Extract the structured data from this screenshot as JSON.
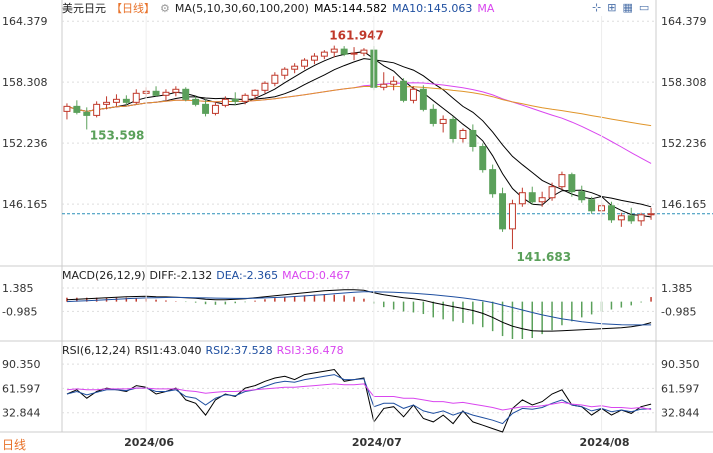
{
  "header": {
    "symbol": "美元日元",
    "period": "【日线】",
    "ma_params": "MA(5,10,30,60,100,200)",
    "ma5": "MA5:144.582",
    "ma10": "MA10:145.063",
    "ma_more": "MA",
    "toolbar_icons": [
      "crosshair-icon",
      "zoom-icon",
      "grid-icon",
      "window-icon"
    ]
  },
  "macd_legend": {
    "params": "MACD(26,12,9)",
    "diff": "DIFF:-2.132",
    "dea": "DEA:-2.365",
    "macd": "MACD:0.467"
  },
  "rsi_legend": {
    "params": "RSI(6,12,24)",
    "rsi1": "RSI1:43.040",
    "rsi2": "RSI2:37.528",
    "rsi3": "RSI3:36.478"
  },
  "footer": {
    "period_button": "日线"
  },
  "colors": {
    "up": "#c0392b",
    "down": "#5aa05a",
    "ma5": "#000000",
    "ma10": "#000000",
    "ma30": "#d946ef",
    "ma60": "#e0952a",
    "ma100": "#888888",
    "ma200": "#b03a2e",
    "current": "#2a8fb8",
    "grid": "#dddddd"
  },
  "chart_data": [
    {
      "type": "candlestick",
      "title": "美元日元 日线",
      "y_ticks": [
        "164.379",
        "158.308",
        "152.236",
        "146.165"
      ],
      "ylim": [
        140.0,
        164.9
      ],
      "x_ticks": [
        "2024/06",
        "2024/07",
        "2024/08"
      ],
      "annotations": {
        "high": "161.947",
        "low": "141.683",
        "prior_low": "153.598"
      },
      "current_price": 145.2,
      "candles": [
        [
          155.4,
          156.2,
          154.6,
          155.9
        ],
        [
          155.9,
          156.5,
          155.1,
          155.3
        ],
        [
          155.3,
          155.8,
          153.6,
          155.0
        ],
        [
          155.0,
          156.4,
          154.8,
          156.1
        ],
        [
          156.1,
          156.9,
          155.6,
          156.3
        ],
        [
          156.3,
          157.1,
          155.9,
          156.6
        ],
        [
          156.6,
          157.0,
          156.0,
          156.3
        ],
        [
          156.3,
          157.6,
          156.1,
          157.2
        ],
        [
          157.2,
          157.8,
          156.8,
          157.4
        ],
        [
          157.4,
          157.9,
          156.9,
          157.0
        ],
        [
          157.0,
          157.6,
          156.5,
          157.3
        ],
        [
          157.3,
          157.9,
          156.9,
          157.6
        ],
        [
          157.6,
          157.8,
          156.4,
          156.6
        ],
        [
          156.6,
          156.9,
          155.9,
          156.1
        ],
        [
          156.1,
          156.6,
          154.9,
          155.2
        ],
        [
          155.2,
          156.3,
          155.0,
          156.0
        ],
        [
          156.0,
          156.9,
          155.8,
          156.6
        ],
        [
          156.6,
          157.3,
          156.0,
          156.4
        ],
        [
          156.4,
          157.2,
          156.1,
          157.0
        ],
        [
          157.0,
          157.6,
          156.6,
          157.5
        ],
        [
          157.5,
          158.4,
          157.2,
          158.2
        ],
        [
          158.2,
          159.3,
          157.9,
          159.0
        ],
        [
          159.0,
          159.8,
          158.6,
          159.6
        ],
        [
          159.6,
          160.2,
          159.2,
          159.9
        ],
        [
          159.9,
          160.7,
          159.6,
          160.5
        ],
        [
          160.5,
          161.2,
          160.1,
          160.9
        ],
        [
          160.9,
          161.5,
          160.6,
          161.3
        ],
        [
          161.3,
          161.95,
          160.8,
          161.6
        ],
        [
          161.6,
          161.9,
          160.9,
          161.1
        ],
        [
          161.1,
          161.8,
          160.5,
          161.2
        ],
        [
          161.2,
          161.7,
          160.9,
          161.5
        ],
        [
          161.5,
          161.9,
          157.5,
          157.8
        ],
        [
          157.8,
          159.3,
          157.5,
          158.1
        ],
        [
          158.1,
          158.9,
          157.5,
          158.4
        ],
        [
          158.4,
          158.7,
          156.3,
          156.5
        ],
        [
          156.5,
          157.9,
          156.2,
          157.6
        ],
        [
          157.6,
          158.0,
          155.4,
          155.6
        ],
        [
          155.6,
          156.1,
          153.9,
          154.2
        ],
        [
          154.2,
          155.0,
          153.3,
          154.6
        ],
        [
          154.6,
          154.9,
          152.3,
          152.7
        ],
        [
          152.7,
          153.7,
          152.3,
          153.5
        ],
        [
          153.5,
          154.1,
          151.4,
          151.9
        ],
        [
          151.9,
          152.2,
          149.3,
          149.6
        ],
        [
          149.6,
          150.1,
          146.8,
          147.2
        ],
        [
          147.2,
          147.8,
          143.4,
          143.7
        ],
        [
          143.7,
          146.6,
          141.68,
          146.2
        ],
        [
          146.2,
          147.8,
          145.9,
          147.3
        ],
        [
          147.3,
          147.9,
          146.1,
          146.4
        ],
        [
          146.4,
          147.4,
          145.9,
          146.8
        ],
        [
          146.8,
          148.3,
          146.5,
          147.9
        ],
        [
          147.9,
          149.4,
          147.6,
          149.1
        ],
        [
          149.1,
          149.3,
          146.9,
          147.4
        ],
        [
          147.4,
          148.0,
          146.3,
          146.6
        ],
        [
          146.6,
          146.9,
          145.2,
          145.5
        ],
        [
          145.5,
          146.3,
          144.9,
          146.0
        ],
        [
          146.0,
          146.4,
          144.3,
          144.6
        ],
        [
          144.6,
          145.3,
          143.9,
          145.0
        ],
        [
          145.0,
          145.8,
          144.2,
          144.5
        ],
        [
          144.5,
          145.3,
          144.0,
          145.1
        ],
        [
          145.1,
          145.8,
          144.6,
          145.2
        ]
      ]
    },
    {
      "type": "macd",
      "title": "MACD(26,12,9)",
      "y_ticks": [
        "1.385",
        "-0.985"
      ],
      "ylim": [
        -3.9,
        2.2
      ],
      "diff": [
        0.2,
        0.25,
        0.3,
        0.35,
        0.4,
        0.45,
        0.5,
        0.52,
        0.55,
        0.5,
        0.48,
        0.45,
        0.4,
        0.35,
        0.25,
        0.2,
        0.2,
        0.25,
        0.3,
        0.4,
        0.5,
        0.6,
        0.7,
        0.8,
        0.9,
        1.0,
        1.1,
        1.15,
        1.2,
        1.2,
        1.15,
        0.9,
        0.7,
        0.55,
        0.4,
        0.3,
        0.15,
        -0.1,
        -0.3,
        -0.5,
        -0.7,
        -0.9,
        -1.2,
        -1.6,
        -2.1,
        -2.5,
        -2.75,
        -2.95,
        -3.0,
        -3.0,
        -2.95,
        -2.9,
        -2.85,
        -2.8,
        -2.75,
        -2.7,
        -2.65,
        -2.55,
        -2.4,
        -2.13
      ],
      "dea": [
        0.0,
        0.05,
        0.1,
        0.15,
        0.2,
        0.25,
        0.3,
        0.35,
        0.38,
        0.4,
        0.42,
        0.43,
        0.42,
        0.4,
        0.38,
        0.36,
        0.34,
        0.33,
        0.33,
        0.35,
        0.38,
        0.42,
        0.46,
        0.52,
        0.58,
        0.65,
        0.72,
        0.8,
        0.88,
        0.95,
        1.0,
        1.0,
        0.98,
        0.95,
        0.9,
        0.85,
        0.78,
        0.7,
        0.6,
        0.5,
        0.38,
        0.25,
        0.1,
        -0.1,
        -0.35,
        -0.6,
        -0.85,
        -1.1,
        -1.35,
        -1.55,
        -1.75,
        -1.9,
        -2.05,
        -2.15,
        -2.25,
        -2.3,
        -2.35,
        -2.36,
        -2.36,
        -2.365
      ],
      "macd": [
        0.4,
        0.4,
        0.4,
        0.4,
        0.4,
        0.4,
        0.4,
        0.34,
        0.34,
        0.2,
        0.12,
        0.04,
        -0.04,
        -0.1,
        -0.26,
        -0.32,
        -0.28,
        -0.16,
        -0.06,
        0.1,
        0.24,
        0.36,
        0.48,
        0.56,
        0.64,
        0.7,
        0.76,
        0.7,
        0.64,
        0.5,
        0.3,
        -0.2,
        -0.56,
        -0.8,
        -1.0,
        -1.1,
        -1.26,
        -1.6,
        -1.8,
        -2.0,
        -2.16,
        -2.3,
        -2.6,
        -3.0,
        -3.5,
        -3.8,
        -3.8,
        -3.7,
        -3.3,
        -2.9,
        -2.4,
        -2.0,
        -1.6,
        -1.3,
        -1.0,
        -0.8,
        -0.6,
        -0.38,
        -0.08,
        0.467
      ]
    },
    {
      "type": "line",
      "title": "RSI(6,12,24)",
      "y_ticks": [
        "90.350",
        "61.597",
        "32.844"
      ],
      "ylim": [
        10,
        100
      ],
      "series": [
        {
          "name": "RSI1",
          "values": [
            55,
            60,
            50,
            58,
            62,
            60,
            58,
            65,
            63,
            55,
            58,
            62,
            48,
            44,
            30,
            48,
            55,
            52,
            62,
            65,
            70,
            74,
            76,
            72,
            78,
            80,
            82,
            84,
            70,
            72,
            74,
            22,
            38,
            40,
            28,
            42,
            26,
            22,
            30,
            20,
            35,
            22,
            18,
            14,
            10,
            38,
            48,
            42,
            46,
            55,
            60,
            42,
            40,
            30,
            38,
            30,
            36,
            32,
            40,
            43.04
          ]
        },
        {
          "name": "RSI2",
          "values": [
            55,
            58,
            54,
            57,
            60,
            60,
            59,
            62,
            62,
            58,
            58,
            60,
            52,
            50,
            42,
            50,
            54,
            53,
            58,
            60,
            64,
            68,
            70,
            69,
            72,
            74,
            76,
            78,
            72,
            72,
            73,
            40,
            44,
            44,
            38,
            42,
            35,
            32,
            35,
            30,
            34,
            30,
            27,
            24,
            20,
            32,
            38,
            37,
            39,
            44,
            48,
            42,
            40,
            35,
            38,
            34,
            36,
            34,
            37,
            37.53
          ]
        },
        {
          "name": "RSI3",
          "values": [
            60,
            61,
            60,
            60,
            61,
            61,
            61,
            62,
            62,
            61,
            61,
            61,
            59,
            58,
            56,
            57,
            58,
            58,
            59,
            60,
            61,
            62,
            63,
            63,
            64,
            65,
            66,
            67,
            66,
            66,
            67,
            52,
            52,
            52,
            50,
            50,
            48,
            46,
            46,
            44,
            45,
            43,
            41,
            39,
            36,
            38,
            40,
            40,
            41,
            43,
            45,
            43,
            42,
            40,
            41,
            39,
            39,
            38,
            39,
            36.48
          ]
        }
      ]
    }
  ]
}
